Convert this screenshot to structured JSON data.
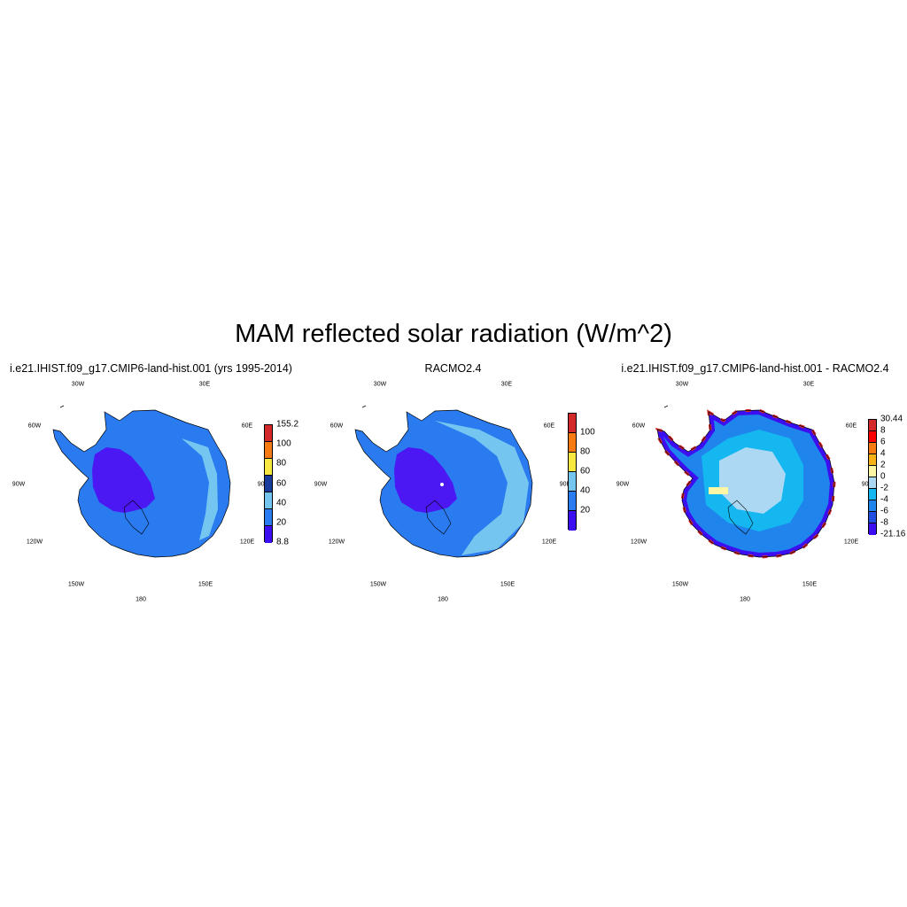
{
  "figure": {
    "title": "MAM reflected solar radiation (W/m^2)",
    "lon_labels": [
      "30W",
      "30E",
      "60W",
      "60E",
      "90W",
      "90E",
      "120W",
      "120E",
      "150W",
      "150E",
      "180"
    ]
  },
  "panels": [
    {
      "title": "i.e21.IHIST.f09_g17.CMIP6-land-hist.001 (yrs 1995-2014)",
      "interior_color": "#4b17f2",
      "colorbar": {
        "colors": [
          "#3b0ff2",
          "#2a7af0",
          "#74c6f0",
          "#183c9c",
          "#f9e83f",
          "#f77a12",
          "#d4292a"
        ],
        "ticks": [
          "155.2",
          "100",
          "80",
          "60",
          "40",
          "20",
          "8.8"
        ]
      }
    },
    {
      "title": "RACMO2.4",
      "interior_color": "#4b17f2",
      "colorbar": {
        "colors": [
          "#3b0ff2",
          "#2a7af0",
          "#74c6f0",
          "#f9e83f",
          "#f77a12",
          "#d4292a"
        ],
        "ticks": [
          "100",
          "80",
          "60",
          "40",
          "20"
        ]
      }
    },
    {
      "title": "i.e21.IHIST.f09_g17.CMIP6-land-hist.001 - RACMO2.4",
      "interior_color": "#acd8f3",
      "colorbar": {
        "colors": [
          "#3b0ff2",
          "#1f4ee0",
          "#1f85ec",
          "#14b7f0",
          "#acd8f3",
          "#fdf6a4",
          "#f8b117",
          "#f77a12",
          "#ff0000",
          "#d4292a"
        ],
        "ticks": [
          "30.44",
          "8",
          "6",
          "4",
          "2",
          "0",
          "-2",
          "-4",
          "-6",
          "-8",
          "-21.16"
        ]
      }
    }
  ]
}
